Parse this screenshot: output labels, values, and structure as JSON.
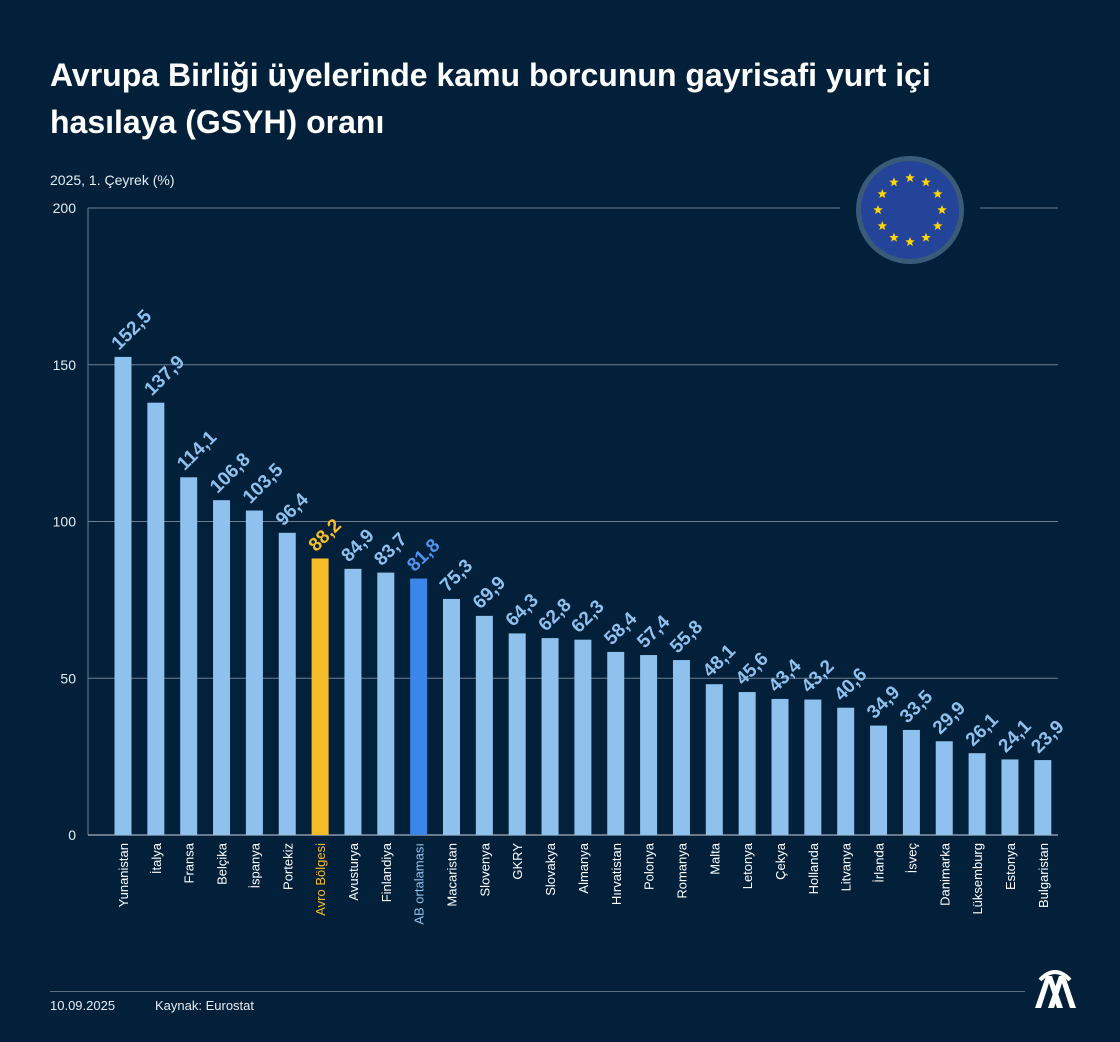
{
  "header": {
    "title": "Avrupa Birliği üyelerinde kamu borcunun gayrisafi yurt içi hasılaya (GSYH) oranı",
    "subtitle": "2025, 1. Çeyrek (%)"
  },
  "footer": {
    "date": "10.09.2025",
    "source": "Kaynak: Eurostat",
    "logo_icon": "aa-logo-icon"
  },
  "badge": {
    "icon": "eu-flag-icon"
  },
  "colors": {
    "background": "#03203b",
    "bar": "#8ec1ee",
    "highlight_euro": "#f6bd2b",
    "highlight_eu": "#3b86e8",
    "grid": "#6d7f91",
    "flag_blue": "#24449a",
    "flag_star": "#ffd600"
  },
  "chart_data": {
    "type": "bar",
    "ylim": [
      0,
      200
    ],
    "yticks": [
      0,
      50,
      100,
      150,
      200
    ],
    "grid": true,
    "categories": [
      "Yunanistan",
      "İtalya",
      "Fransa",
      "Belçika",
      "İspanya",
      "Portekiz",
      "Avro Bölgesi",
      "Avusturya",
      "Finlandiya",
      "AB ortalaması",
      "Macaristan",
      "Slovenya",
      "GKRY",
      "Slovakya",
      "Almanya",
      "Hırvatistan",
      "Polonya",
      "Romanya",
      "Malta",
      "Letonya",
      "Çekya",
      "Hollanda",
      "Litvanya",
      "İrlanda",
      "İsveç",
      "Danimarka",
      "Lüksemburg",
      "Estonya",
      "Bulgaristan"
    ],
    "values": [
      152.5,
      137.9,
      114.1,
      106.8,
      103.5,
      96.4,
      88.2,
      84.9,
      83.7,
      81.8,
      75.3,
      69.9,
      64.3,
      62.8,
      62.3,
      58.4,
      57.4,
      55.8,
      48.1,
      45.6,
      43.4,
      43.2,
      40.6,
      34.9,
      33.5,
      29.9,
      26.1,
      24.1,
      23.9
    ],
    "value_labels": [
      "152,5",
      "137,9",
      "114,1",
      "106,8",
      "103,5",
      "96,4",
      "88,2",
      "84,9",
      "83,7",
      "81,8",
      "75,3",
      "69,9",
      "64,3",
      "62,8",
      "62,3",
      "58,4",
      "57,4",
      "55,8",
      "48,1",
      "45,6",
      "43,4",
      "43,2",
      "40,6",
      "34,9",
      "33,5",
      "29,9",
      "26,1",
      "24,1",
      "23,9"
    ],
    "highlights": {
      "Avro Bölgesi": "highlight_euro",
      "AB ortalaması": "highlight_eu"
    }
  }
}
